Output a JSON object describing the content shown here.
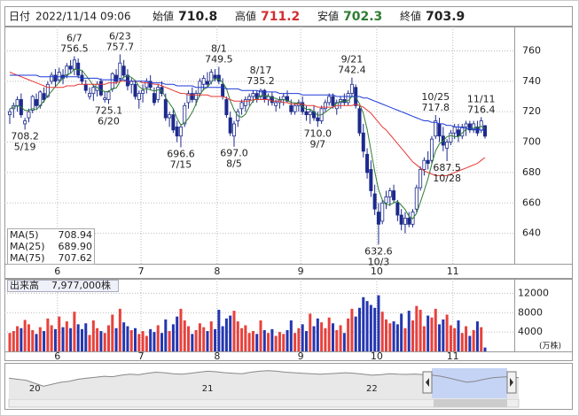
{
  "header": {
    "date_label": "日付",
    "datetime": "2022/11/14 09:06",
    "open_label": "始値",
    "high_label": "高値",
    "low_label": "安値",
    "close_label": "終値"
  },
  "chart_data": [
    {
      "type": "candlestick",
      "xticks": [
        {
          "value": 13,
          "label": "6"
        },
        {
          "value": 35,
          "label": "7"
        },
        {
          "value": 55,
          "label": "8"
        },
        {
          "value": 77,
          "label": "9"
        },
        {
          "value": 97,
          "label": "10"
        },
        {
          "value": 117,
          "label": "11"
        }
      ],
      "open": [
        718,
        722,
        724,
        728,
        712,
        716,
        721,
        728,
        724,
        732,
        730,
        740,
        744,
        741,
        744,
        744,
        750,
        748,
        752,
        744,
        738,
        730,
        732,
        734,
        740,
        728,
        728,
        735,
        744,
        742,
        750,
        744,
        738,
        738,
        728,
        732,
        736,
        740,
        732,
        728,
        736,
        728,
        716,
        718,
        710,
        704,
        712,
        726,
        732,
        728,
        732,
        738,
        740,
        740,
        744,
        744,
        738,
        728,
        716,
        704,
        714,
        722,
        724,
        728,
        730,
        732,
        730,
        734,
        728,
        730,
        724,
        726,
        728,
        730,
        724,
        720,
        724,
        726,
        720,
        718,
        720,
        716,
        714,
        722,
        726,
        730,
        722,
        726,
        728,
        726,
        732,
        736,
        722,
        706,
        692,
        682,
        666,
        654,
        648,
        660,
        664,
        668,
        660,
        652,
        646,
        650,
        646,
        656,
        670,
        682,
        688,
        688,
        704,
        712,
        704,
        696,
        700,
        706,
        708,
        704,
        710,
        712,
        708,
        710,
        708,
        710.8
      ],
      "high": [
        722,
        726,
        730,
        732,
        716,
        722,
        731,
        732,
        734,
        736,
        740,
        746,
        748,
        749,
        748,
        752,
        754,
        756.5,
        755,
        747,
        741,
        736,
        738,
        740,
        742,
        733,
        734,
        746,
        748,
        757.7,
        754,
        748,
        742,
        740,
        734,
        738,
        742,
        744,
        736,
        738,
        740,
        732,
        720,
        722,
        714,
        712,
        726,
        734,
        736,
        734,
        742,
        744,
        746,
        748,
        748,
        749.5,
        742,
        730,
        720,
        714,
        722,
        728,
        730,
        732,
        734,
        734,
        735.2,
        735,
        732,
        733,
        728,
        730,
        732,
        734,
        728,
        726,
        728,
        730,
        724,
        722,
        724,
        720,
        724,
        728,
        732,
        732,
        728,
        730,
        732,
        734,
        742.4,
        738,
        724,
        712,
        696,
        688,
        672,
        660,
        662,
        668,
        670,
        672,
        662,
        656,
        654,
        654,
        656,
        672,
        684,
        690,
        694,
        704,
        717.8,
        716,
        710,
        702,
        708,
        712,
        712,
        712,
        714,
        714,
        714,
        714,
        716.4,
        711.2
      ],
      "low": [
        712,
        716,
        720,
        716,
        708.2,
        713,
        719,
        722,
        722,
        726,
        729,
        738,
        736,
        739,
        738,
        742,
        745,
        744,
        742,
        738,
        732,
        728,
        727,
        730,
        730,
        726,
        725.1,
        733,
        738,
        740,
        742,
        734,
        732,
        728,
        722,
        726,
        732,
        734,
        724,
        726,
        730,
        714,
        710,
        706,
        700,
        696.6,
        710,
        722,
        726,
        724,
        730,
        734,
        736,
        738,
        740,
        738,
        728,
        716,
        704,
        697.0,
        710,
        718,
        720,
        724,
        726,
        726,
        728,
        726,
        724,
        724,
        720,
        722,
        724,
        726,
        718,
        718,
        720,
        718,
        714,
        712,
        714,
        710.0,
        712,
        720,
        724,
        722,
        718,
        722,
        724,
        724,
        730,
        722,
        704,
        690,
        676,
        664,
        652,
        632.6,
        646,
        656,
        658,
        660,
        648,
        642,
        640,
        644,
        644,
        654,
        668,
        678,
        682,
        686,
        702,
        700,
        694,
        687.5,
        698,
        702,
        700,
        702,
        704,
        706,
        706,
        704,
        706,
        702.3
      ],
      "close": [
        720,
        724,
        728,
        718,
        714,
        720,
        730,
        724,
        733,
        728,
        738,
        744,
        740,
        746,
        742,
        750,
        748,
        754,
        744,
        740,
        734,
        732,
        736,
        738,
        731,
        729,
        733,
        745,
        740,
        752,
        744,
        737,
        740,
        730,
        732,
        734,
        740,
        736,
        726,
        736,
        732,
        716,
        718,
        708,
        704,
        710,
        724,
        732,
        728,
        732,
        740,
        742,
        738,
        746,
        742,
        740,
        730,
        718,
        706,
        712,
        720,
        726,
        728,
        730,
        732,
        728,
        734,
        728,
        730,
        726,
        726,
        728,
        730,
        727,
        720,
        724,
        726,
        720,
        718,
        720,
        716,
        714,
        722,
        726,
        730,
        724,
        726,
        728,
        726,
        732,
        738,
        724,
        706,
        694,
        680,
        668,
        656,
        646,
        660,
        664,
        668,
        662,
        652,
        646,
        650,
        646,
        654,
        670,
        682,
        688,
        686,
        702,
        714,
        704,
        698,
        700,
        706,
        710,
        704,
        710,
        712,
        708,
        712,
        706,
        714,
        703.9
      ],
      "up_color": "#ffffff",
      "down_color": "#1c2a8c",
      "candle_stroke": "#1c2a8c",
      "series": [
        {
          "name": "MA(5)",
          "color": "#2e7d32",
          "last_label": "708.94",
          "values": [
            722,
            723,
            724,
            723,
            720.8,
            720.8,
            722,
            721.2,
            724.2,
            727,
            730.6,
            733.4,
            736.6,
            739.2,
            742,
            744.4,
            745.2,
            748,
            747.6,
            747.2,
            744,
            740.8,
            737.2,
            736,
            734.2,
            733.2,
            733.4,
            735.2,
            735.6,
            739.8,
            742.8,
            743.6,
            742.6,
            740.6,
            736.6,
            734.6,
            735.2,
            734.4,
            733.6,
            734.4,
            734,
            729.2,
            725.6,
            722,
            715.6,
            711.2,
            712.8,
            715.6,
            719.6,
            725.2,
            731.2,
            734.8,
            736,
            739.6,
            741.6,
            741.6,
            739.2,
            735.2,
            727.2,
            721.2,
            717.2,
            716.4,
            718.4,
            723.2,
            727.2,
            728.8,
            730.4,
            730.4,
            730.4,
            729.2,
            728.8,
            727.6,
            728,
            727.4,
            726.2,
            725.8,
            725.4,
            723.4,
            721.6,
            721.6,
            720,
            717.6,
            718,
            719.6,
            721.6,
            723.2,
            725.6,
            726.8,
            726.8,
            727.2,
            730,
            729.6,
            725.2,
            718.8,
            708.4,
            694.4,
            680.8,
            668.8,
            662,
            658.8,
            658.8,
            660,
            661.2,
            658.4,
            655.6,
            651.2,
            649.6,
            653.2,
            660.4,
            668,
            676,
            685.6,
            694.4,
            698.8,
            700.8,
            703.6,
            704.4,
            703.6,
            703.6,
            706,
            708.4,
            708.8,
            709.2,
            709.6,
            710.4,
            708.94
          ]
        },
        {
          "name": "MA(25)",
          "color": "#e53935",
          "last_label": "689.90",
          "values": [
            746,
            745,
            744,
            743,
            742,
            741,
            740,
            739,
            738,
            737,
            736,
            736,
            736,
            736,
            736,
            737,
            737,
            737,
            738,
            738,
            738,
            738,
            738,
            738,
            738,
            738,
            739,
            739,
            739,
            740,
            740,
            740,
            740,
            740,
            740,
            739,
            739,
            739,
            738,
            738,
            737,
            736,
            735,
            734,
            733,
            732,
            732,
            731,
            731,
            731,
            731,
            731,
            731,
            730,
            730,
            730,
            730,
            729,
            728,
            727,
            727,
            727,
            727,
            727,
            728,
            728,
            728,
            728,
            728,
            727,
            727,
            727,
            726,
            726,
            725,
            725,
            725,
            725,
            724,
            724,
            724,
            723,
            723,
            723,
            723,
            723,
            724,
            724,
            724,
            724,
            724,
            725,
            724,
            723,
            721,
            719,
            716,
            713,
            710,
            708,
            705,
            702,
            699,
            696,
            693,
            690,
            687,
            685,
            683,
            681,
            680,
            679,
            678,
            678,
            678,
            678,
            679,
            680,
            681,
            682,
            683,
            684,
            685,
            686,
            688,
            689.9
          ]
        },
        {
          "name": "MA(75)",
          "color": "#1e3ad6",
          "last_label": "707.62",
          "values": [
            744,
            744,
            744,
            744,
            744,
            744,
            744,
            744,
            743,
            743,
            743,
            743,
            743,
            743,
            743,
            743,
            743,
            743,
            743,
            742,
            742,
            742,
            742,
            742,
            741,
            741,
            741,
            741,
            741,
            741,
            741,
            740,
            740,
            740,
            740,
            740,
            740,
            739,
            739,
            739,
            739,
            738,
            738,
            738,
            737,
            737,
            737,
            737,
            737,
            736,
            736,
            736,
            736,
            736,
            736,
            736,
            736,
            735,
            735,
            735,
            735,
            734,
            734,
            734,
            734,
            734,
            733,
            733,
            733,
            733,
            733,
            732,
            732,
            732,
            732,
            732,
            732,
            731,
            731,
            731,
            731,
            731,
            731,
            731,
            731,
            731,
            730,
            730,
            730,
            730,
            730,
            730,
            730,
            729,
            729,
            728,
            727,
            726,
            725,
            724,
            723,
            722,
            721,
            720,
            719,
            718,
            717,
            716,
            715,
            714,
            714,
            713,
            713,
            712,
            712,
            711,
            711,
            710,
            710,
            709.5,
            709,
            708.8,
            708.5,
            708.2,
            707.9,
            707.62
          ]
        }
      ],
      "ylim": [
        620,
        776
      ],
      "yticks": [
        640,
        660,
        680,
        700,
        720,
        740,
        760
      ],
      "grid": true,
      "annotations": [
        {
          "x": 4,
          "date": "5/19",
          "at": "low"
        },
        {
          "x": 17,
          "date": "6/7",
          "at": "high"
        },
        {
          "x": 26,
          "date": "6/20",
          "at": "low"
        },
        {
          "x": 29,
          "date": "6/23",
          "at": "high"
        },
        {
          "x": 45,
          "date": "7/15",
          "at": "low"
        },
        {
          "x": 55,
          "date": "8/1",
          "at": "high"
        },
        {
          "x": 59,
          "date": "8/5",
          "at": "low",
          "label": "697.0"
        },
        {
          "x": 66,
          "date": "8/17",
          "at": "high"
        },
        {
          "x": 81,
          "date": "9/7",
          "at": "low",
          "label": "710.0"
        },
        {
          "x": 90,
          "date": "9/21",
          "at": "high"
        },
        {
          "x": 97,
          "date": "10/3",
          "at": "low"
        },
        {
          "x": 112,
          "date": "10/25",
          "at": "high"
        },
        {
          "x": 115,
          "date": "10/28",
          "at": "low"
        },
        {
          "x": 124,
          "date": "11/11",
          "at": "high"
        }
      ]
    },
    {
      "type": "bar",
      "title": "出来高",
      "total_label": "7,977,000株",
      "unit": "(万株)",
      "up_color": "#e8413c",
      "down_color": "#2436b0",
      "values": [
        3800,
        4200,
        5200,
        4800,
        6500,
        5600,
        4400,
        3600,
        5000,
        4200,
        6800,
        5400,
        4600,
        7200,
        5000,
        6200,
        4800,
        8200,
        5600,
        4600,
        5800,
        3400,
        6400,
        4800,
        4200,
        3800,
        5400,
        7600,
        4800,
        8800,
        6000,
        5200,
        4400,
        4800,
        3600,
        4200,
        3200,
        4600,
        4000,
        5400,
        3800,
        6600,
        4200,
        5600,
        7200,
        8800,
        6400,
        5200,
        3600,
        4400,
        5800,
        5000,
        4200,
        6200,
        4600,
        8600,
        5200,
        6800,
        7400,
        8400,
        6200,
        4800,
        5400,
        3800,
        4200,
        3600,
        6400,
        4400,
        3800,
        4600,
        3200,
        4000,
        3600,
        4400,
        6400,
        3800,
        4800,
        5600,
        4200,
        7800,
        5200,
        6800,
        6000,
        4800,
        7000,
        5800,
        4400,
        5400,
        3800,
        6800,
        8800,
        7200,
        9000,
        11200,
        10400,
        9600,
        9000,
        11600,
        8200,
        6600,
        5800,
        6200,
        5600,
        7800,
        4800,
        8400,
        6400,
        9400,
        8600,
        5200,
        7400,
        7000,
        8800,
        5600,
        6600,
        7600,
        5400,
        4800,
        6400,
        3800,
        5200,
        3200,
        4400,
        6200,
        5000,
        797.7
      ],
      "ylim": [
        0,
        15000
      ],
      "yticks": [
        4000,
        8000,
        12000
      ],
      "grid": true
    },
    {
      "type": "area",
      "color": "#888888",
      "values": [
        700,
        690,
        680,
        650,
        620,
        640,
        660,
        670,
        690,
        700,
        710,
        720,
        715,
        730,
        740,
        735,
        750,
        760,
        755,
        745,
        740,
        750,
        760,
        770,
        765,
        755,
        750,
        745,
        760,
        770,
        775,
        770,
        760,
        755,
        750,
        745,
        740,
        745,
        750,
        755,
        750,
        740,
        730,
        735,
        745,
        740,
        738,
        742,
        736,
        730,
        720,
        700,
        680,
        660,
        670,
        690,
        705,
        712,
        715,
        706
      ],
      "ylim": [
        500,
        800
      ],
      "xticks": [
        {
          "value": 3,
          "label": "20"
        },
        {
          "value": 23,
          "label": "21"
        },
        {
          "value": 42,
          "label": "22"
        }
      ]
    }
  ]
}
